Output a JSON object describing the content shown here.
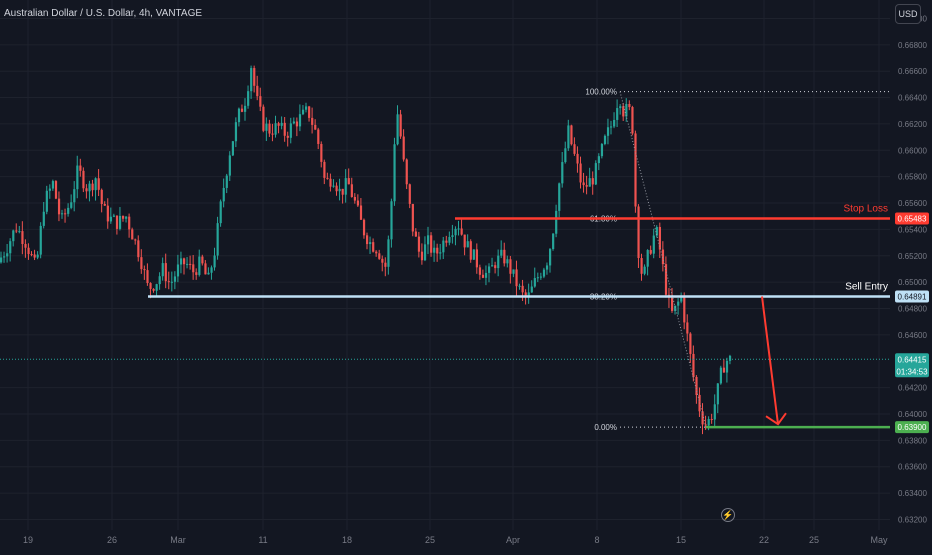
{
  "header": {
    "title": "Australian Dollar / U.S. Dollar, 4h, VANTAGE",
    "currency_button": "USD"
  },
  "colors": {
    "background": "#131722",
    "up": "#26a69a",
    "down": "#ef5350",
    "stop_loss": "#ff3b30",
    "sell_entry": "#bfe1f6",
    "target": "#4caf50",
    "grid": "#1e222d",
    "axis_text": "#787b86"
  },
  "icons": {
    "flash": "lightning-bolt-icon",
    "flash_glyph": "⚡"
  },
  "chart_data": {
    "type": "candlestick",
    "symbol": "AUDUSD",
    "interval": "4h",
    "price_axis": {
      "min": 0.6312,
      "max": 0.6714,
      "ticks": [
        "0.67000",
        "0.66800",
        "0.66600",
        "0.66400",
        "0.66200",
        "0.66000",
        "0.65800",
        "0.65600",
        "0.65400",
        "0.65200",
        "0.65000",
        "0.64800",
        "0.64600",
        "0.64200",
        "0.64000",
        "0.63800",
        "0.63600",
        "0.63400",
        "0.63200"
      ]
    },
    "time_axis": {
      "labels": [
        "19",
        "26",
        "Mar",
        "11",
        "18",
        "25",
        "Apr",
        "8",
        "15",
        "22",
        "25",
        "May"
      ]
    },
    "price_path": [
      [
        0,
        0.6515
      ],
      [
        8,
        0.6525
      ],
      [
        18,
        0.6542
      ],
      [
        28,
        0.653
      ],
      [
        38,
        0.651
      ],
      [
        46,
        0.656
      ],
      [
        55,
        0.6575
      ],
      [
        63,
        0.6545
      ],
      [
        72,
        0.656
      ],
      [
        80,
        0.6585
      ],
      [
        90,
        0.657
      ],
      [
        98,
        0.658
      ],
      [
        105,
        0.6555
      ],
      [
        112,
        0.6548
      ],
      [
        120,
        0.6545
      ],
      [
        128,
        0.655
      ],
      [
        135,
        0.6535
      ],
      [
        142,
        0.652
      ],
      [
        150,
        0.6495
      ],
      [
        158,
        0.65
      ],
      [
        165,
        0.651
      ],
      [
        172,
        0.6498
      ],
      [
        180,
        0.651
      ],
      [
        187,
        0.6515
      ],
      [
        195,
        0.6508
      ],
      [
        203,
        0.6515
      ],
      [
        210,
        0.65
      ],
      [
        217,
        0.6525
      ],
      [
        224,
        0.6565
      ],
      [
        232,
        0.66
      ],
      [
        240,
        0.6625
      ],
      [
        248,
        0.664
      ],
      [
        253,
        0.6665
      ],
      [
        258,
        0.664
      ],
      [
        265,
        0.662
      ],
      [
        272,
        0.6615
      ],
      [
        280,
        0.6618
      ],
      [
        288,
        0.6612
      ],
      [
        295,
        0.662
      ],
      [
        303,
        0.6625
      ],
      [
        310,
        0.663
      ],
      [
        317,
        0.6615
      ],
      [
        322,
        0.66
      ],
      [
        327,
        0.6575
      ],
      [
        335,
        0.658
      ],
      [
        342,
        0.6568
      ],
      [
        350,
        0.6575
      ],
      [
        357,
        0.656
      ],
      [
        365,
        0.654
      ],
      [
        372,
        0.653
      ],
      [
        380,
        0.6525
      ],
      [
        387,
        0.651
      ],
      [
        392,
        0.654
      ],
      [
        397,
        0.6615
      ],
      [
        400,
        0.663
      ],
      [
        404,
        0.66
      ],
      [
        408,
        0.6575
      ],
      [
        415,
        0.654
      ],
      [
        422,
        0.652
      ],
      [
        430,
        0.653
      ],
      [
        437,
        0.652
      ],
      [
        445,
        0.653
      ],
      [
        452,
        0.654
      ],
      [
        460,
        0.6545
      ],
      [
        467,
        0.653
      ],
      [
        475,
        0.652
      ],
      [
        482,
        0.651
      ],
      [
        490,
        0.6505
      ],
      [
        497,
        0.6515
      ],
      [
        505,
        0.652
      ],
      [
        512,
        0.651
      ],
      [
        518,
        0.65
      ],
      [
        524,
        0.649
      ],
      [
        530,
        0.6488
      ],
      [
        537,
        0.65
      ],
      [
        544,
        0.651
      ],
      [
        550,
        0.6518
      ],
      [
        555,
        0.654
      ],
      [
        560,
        0.657
      ],
      [
        565,
        0.659
      ],
      [
        570,
        0.6615
      ],
      [
        575,
        0.66
      ],
      [
        580,
        0.6585
      ],
      [
        585,
        0.657
      ],
      [
        590,
        0.6575
      ],
      [
        596,
        0.658
      ],
      [
        602,
        0.6595
      ],
      [
        608,
        0.661
      ],
      [
        614,
        0.662
      ],
      [
        618,
        0.6635
      ],
      [
        622,
        0.664
      ],
      [
        626,
        0.6628
      ],
      [
        630,
        0.6632
      ],
      [
        634,
        0.6625
      ],
      [
        638,
        0.6548
      ],
      [
        642,
        0.651
      ],
      [
        646,
        0.6505
      ],
      [
        650,
        0.652
      ],
      [
        654,
        0.653
      ],
      [
        658,
        0.654
      ],
      [
        663,
        0.652
      ],
      [
        668,
        0.6495
      ],
      [
        673,
        0.6475
      ],
      [
        678,
        0.648
      ],
      [
        683,
        0.649
      ],
      [
        688,
        0.6465
      ],
      [
        693,
        0.644
      ],
      [
        698,
        0.6415
      ],
      [
        703,
        0.64
      ],
      [
        707,
        0.6392
      ],
      [
        711,
        0.6395
      ],
      [
        715,
        0.6402
      ],
      [
        719,
        0.6415
      ],
      [
        723,
        0.643
      ],
      [
        727,
        0.644
      ],
      [
        730,
        0.6441
      ]
    ],
    "fibonacci": [
      {
        "label": "100.00%",
        "value": 0.66445
      },
      {
        "label": "61.80%",
        "value": 0.65483
      },
      {
        "label": "38.20%",
        "value": 0.64891
      },
      {
        "label": "0.00%",
        "value": 0.639
      }
    ],
    "levels": [
      {
        "name": "Stop Loss",
        "value": 0.65483,
        "badge": "0.65483",
        "color": "#ff3b30"
      },
      {
        "name": "Sell Entry",
        "value": 0.64891,
        "badge": "0.64891",
        "color": "#bfe1f6"
      },
      {
        "name": "",
        "value": 0.639,
        "badge": "0.63900",
        "color": "#4caf50"
      }
    ],
    "current_price": {
      "value": 0.64415,
      "label": "0.64415",
      "countdown": "01:34:53"
    },
    "projection": {
      "from": 0.64891,
      "to": 0.639
    }
  }
}
